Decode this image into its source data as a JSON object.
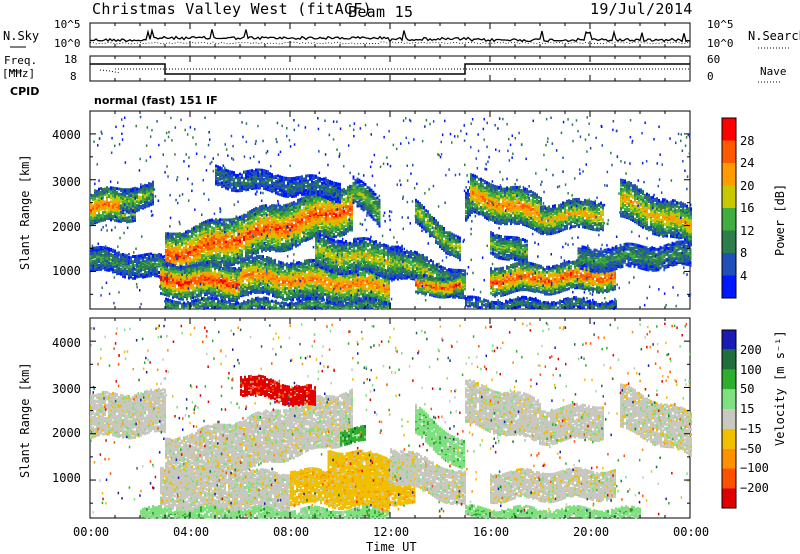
{
  "header": {
    "station": "Christmas Valley West (fitACF)",
    "beam": "Beam 15",
    "date": "19/Jul/2014"
  },
  "noise_panel": {
    "left_label": "N.Sky",
    "right_label": "N.Search",
    "ticks_left": [
      "10^5",
      "10^0"
    ],
    "ticks_right": [
      "10^5",
      "10^0"
    ]
  },
  "freq_panel": {
    "left_label_1": "Freq.",
    "left_label_2": "[MHz]",
    "right_label": "Nave",
    "ticks_left": [
      "18",
      "8"
    ],
    "ticks_right": [
      "60",
      "0"
    ]
  },
  "cpid_panel": {
    "label": "CPID",
    "value": "normal (fast) 151 IF"
  },
  "chart_data": [
    {
      "type": "heatmap",
      "name": "power",
      "ylabel": "Slant Range [km]",
      "yticks": [
        "4000",
        "3000",
        "2000",
        "1000"
      ],
      "ylim": [
        180,
        4500
      ],
      "colorbar_label": "Power [dB]",
      "colorbar_ticks": [
        "28",
        "24",
        "20",
        "16",
        "12",
        "8",
        "4"
      ],
      "colors": [
        "#0018ff",
        "#1f4fb8",
        "#2e7d4c",
        "#3fae3f",
        "#c8c800",
        "#ff9a00",
        "#ff5a00",
        "#ff0000"
      ]
    },
    {
      "type": "heatmap",
      "name": "velocity",
      "ylabel": "Slant Range [km]",
      "yticks": [
        "4000",
        "3000",
        "2000",
        "1000"
      ],
      "ylim": [
        180,
        4500
      ],
      "colorbar_label": "Velocity [m s⁻¹]",
      "colorbar_ticks": [
        "200",
        "100",
        "50",
        "15",
        "−15",
        "−50",
        "−100",
        "−200"
      ],
      "colors": [
        "#1a1ab4",
        "#1f6e3c",
        "#2eae2e",
        "#7ee07e",
        "#c8c8c0",
        "#f0c000",
        "#ff9000",
        "#ff5000",
        "#e00000"
      ]
    }
  ],
  "x_axis": {
    "ticks": [
      "00:00",
      "04:00",
      "08:00",
      "12:00",
      "16:00",
      "20:00",
      "00:00"
    ],
    "label": "Time UT"
  }
}
